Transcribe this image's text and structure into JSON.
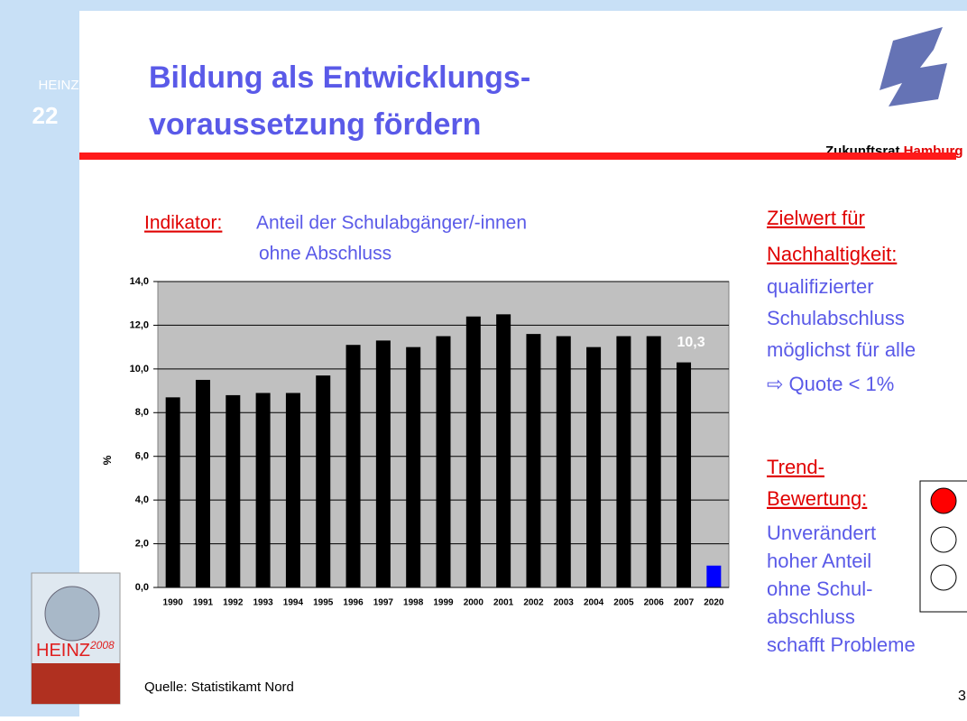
{
  "header": {
    "series_label": "HEINZ",
    "series_number": "22",
    "title_line1": "Bildung als Entwicklungs-",
    "title_line2": "voraussetzung fördern",
    "logo_text": "Zukunftsrat",
    "logo_city": "Hamburg"
  },
  "indicator": {
    "label": "Indikator:",
    "text_line1": "Anteil der Schulabgänger/-innen",
    "text_line2": "ohne Abschluss"
  },
  "chart_data": {
    "type": "bar",
    "y_label": "%",
    "categories": [
      "1990",
      "1991",
      "1992",
      "1993",
      "1994",
      "1995",
      "1996",
      "1997",
      "1998",
      "1999",
      "2000",
      "2001",
      "2002",
      "2003",
      "2004",
      "2005",
      "2006",
      "2007",
      "2020"
    ],
    "values": [
      8.7,
      9.5,
      8.8,
      8.9,
      8.9,
      9.7,
      11.1,
      11.3,
      11.0,
      11.5,
      12.4,
      12.5,
      11.6,
      11.5,
      11.0,
      11.5,
      11.5,
      10.3,
      1.0
    ],
    "value_labels": [
      null,
      null,
      null,
      null,
      null,
      null,
      null,
      null,
      null,
      null,
      null,
      null,
      null,
      null,
      null,
      null,
      null,
      "10,3",
      null
    ],
    "colors": [
      "#000000",
      "#000000",
      "#000000",
      "#000000",
      "#000000",
      "#000000",
      "#000000",
      "#000000",
      "#000000",
      "#000000",
      "#000000",
      "#000000",
      "#000000",
      "#000000",
      "#000000",
      "#000000",
      "#000000",
      "#000000",
      "#0000ff"
    ],
    "ylim": [
      0,
      14
    ],
    "yticks": [
      {
        "value": 0,
        "label": "0,0"
      },
      {
        "value": 2,
        "label": "2,0"
      },
      {
        "value": 4,
        "label": "4,0"
      },
      {
        "value": 6,
        "label": "6,0"
      },
      {
        "value": 8,
        "label": "8,0"
      },
      {
        "value": 10,
        "label": "10,0"
      },
      {
        "value": 12,
        "label": "12,0"
      },
      {
        "value": 14,
        "label": "14,0"
      }
    ],
    "grid": true,
    "plot_color": "#c0c0c0"
  },
  "source": "Quelle: Statistikamt Nord",
  "target": {
    "heading1": "Zielwert für",
    "heading2": "Nachhaltigkeit:",
    "lines": [
      "qualifizierter",
      "Schulabschluss",
      "möglichst für alle"
    ],
    "quota": "⇨ Quote < 1%"
  },
  "trend": {
    "heading1": "Trend-",
    "heading2": "Bewertung:",
    "lines": [
      "Unverändert",
      "hoher Anteil",
      "ohne Schul-",
      "abschluss",
      "schafft Probleme"
    ]
  },
  "book": {
    "title": "HEINZ",
    "year": "2008"
  },
  "page_number": "3"
}
